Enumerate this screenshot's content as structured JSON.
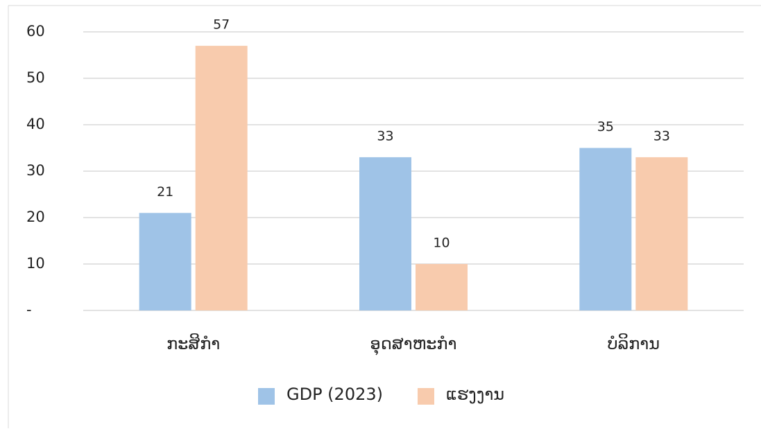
{
  "chart_data": {
    "type": "bar",
    "categories": [
      "ກະສິກຳ",
      "ອຸດສາຫະກຳ",
      "ບໍລິການ"
    ],
    "series": [
      {
        "name": "GDP (2023)",
        "color": "#9fc3e7",
        "values": [
          21,
          33,
          35
        ]
      },
      {
        "name": "ແຮງງານ",
        "color": "#f8cbad",
        "values": [
          57,
          10,
          33
        ]
      }
    ],
    "ylim": [
      0,
      60
    ],
    "yticks": [
      {
        "value": 0,
        "label": "-"
      },
      10,
      20,
      30,
      40,
      50,
      60
    ],
    "grid": true,
    "legend": "bottom"
  }
}
